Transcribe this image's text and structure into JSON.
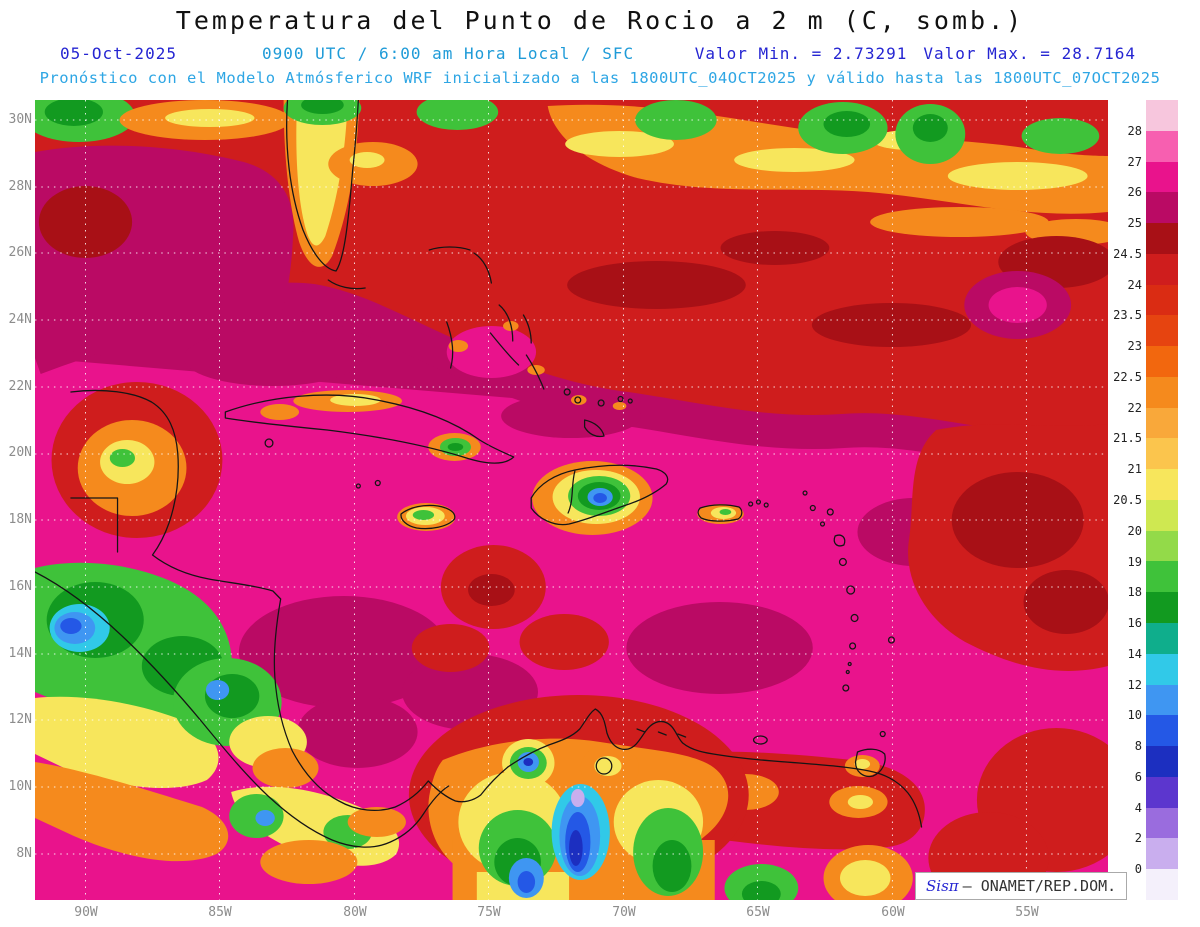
{
  "header": {
    "title": "Temperatura del Punto de Rocio a 2 m (C, somb.)",
    "date": "05-Oct-2025",
    "time_line": "0900 UTC / 6:00 am Hora Local / SFC",
    "min_label": "Valor Min. = 2.73291",
    "max_label": "Valor Max. = 28.7164",
    "model_line": "Pronóstico con el Modelo Atmósferico WRF inicializado a las 1800UTC_04OCT2025 y válido hasta las 1800UTC_07OCT2025"
  },
  "map": {
    "lat_ticks": [
      "30N",
      "28N",
      "26N",
      "24N",
      "22N",
      "20N",
      "18N",
      "16N",
      "14N",
      "12N",
      "10N",
      "8N"
    ],
    "lon_ticks": [
      "90W",
      "85W",
      "80W",
      "75W",
      "70W",
      "65W",
      "60W",
      "55W"
    ]
  },
  "colorbar": {
    "labels": [
      "28",
      "27",
      "26",
      "25",
      "24.5",
      "24",
      "23.5",
      "23",
      "22.5",
      "22",
      "21.5",
      "21",
      "20.5",
      "20",
      "19",
      "18",
      "16",
      "14",
      "12",
      "10",
      "8",
      "6",
      "4",
      "2",
      "0"
    ],
    "segments": [
      {
        "range": "> 28",
        "color": "#f7c6dd"
      },
      {
        "range": "27–28",
        "color": "#f75fb0"
      },
      {
        "range": "26–27",
        "color": "#e9138c"
      },
      {
        "range": "25–26",
        "color": "#ba0a64"
      },
      {
        "range": "24.5–25",
        "color": "#a81016"
      },
      {
        "range": "24–24.5",
        "color": "#cf1d1d"
      },
      {
        "range": "23.5–24",
        "color": "#da2c13"
      },
      {
        "range": "23–23.5",
        "color": "#e64410"
      },
      {
        "range": "22.5–23",
        "color": "#f2670e"
      },
      {
        "range": "22–22.5",
        "color": "#f58a1d"
      },
      {
        "range": "21.5–22",
        "color": "#f9a83a"
      },
      {
        "range": "21–21.5",
        "color": "#fbc54d"
      },
      {
        "range": "20.5–21",
        "color": "#f7e65c"
      },
      {
        "range": "20–20.5",
        "color": "#cfe851"
      },
      {
        "range": "19–20",
        "color": "#93da49"
      },
      {
        "range": "18–19",
        "color": "#3fc23a"
      },
      {
        "range": "16–18",
        "color": "#129a20"
      },
      {
        "range": "14–16",
        "color": "#0fae8c"
      },
      {
        "range": "12–14",
        "color": "#31c9e8"
      },
      {
        "range": "10–12",
        "color": "#3f96f2"
      },
      {
        "range": "8–10",
        "color": "#2458e6"
      },
      {
        "range": "6–8",
        "color": "#1c2fc0"
      },
      {
        "range": "4–6",
        "color": "#5c36ce"
      },
      {
        "range": "2–4",
        "color": "#9a6cde"
      },
      {
        "range": "0–2",
        "color": "#c9aeee"
      },
      {
        "range": "< 0",
        "color": "#f4f0fb"
      }
    ]
  },
  "credit": {
    "brand": "Sisπ",
    "text": "– ONAMET/REP.DOM."
  },
  "colors": {
    "title": "#111111",
    "date_blue": "#2525d2",
    "info_cyan": "#1f9bd8",
    "model_blue": "#2ea6e4",
    "tick_gray": "#8c8c8c"
  }
}
